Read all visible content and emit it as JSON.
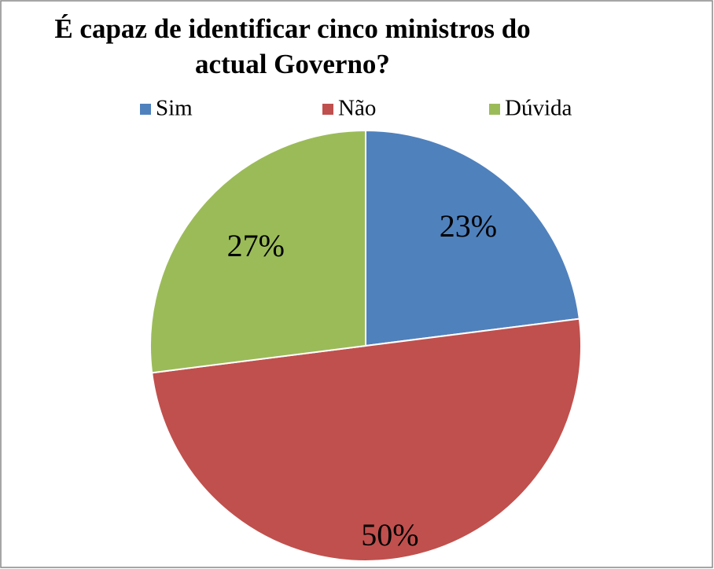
{
  "chart_data": {
    "type": "pie",
    "title": [
      "É capaz de identificar cinco ministros do",
      "actual Governo?"
    ],
    "categories": [
      "Sim",
      "Não",
      "Dúvida"
    ],
    "values": [
      23,
      50,
      27
    ],
    "value_labels": [
      "23%",
      "50%",
      "27%"
    ],
    "colors": [
      "#4f81bd",
      "#c0504d",
      "#9bbb59"
    ],
    "legend": "top"
  }
}
